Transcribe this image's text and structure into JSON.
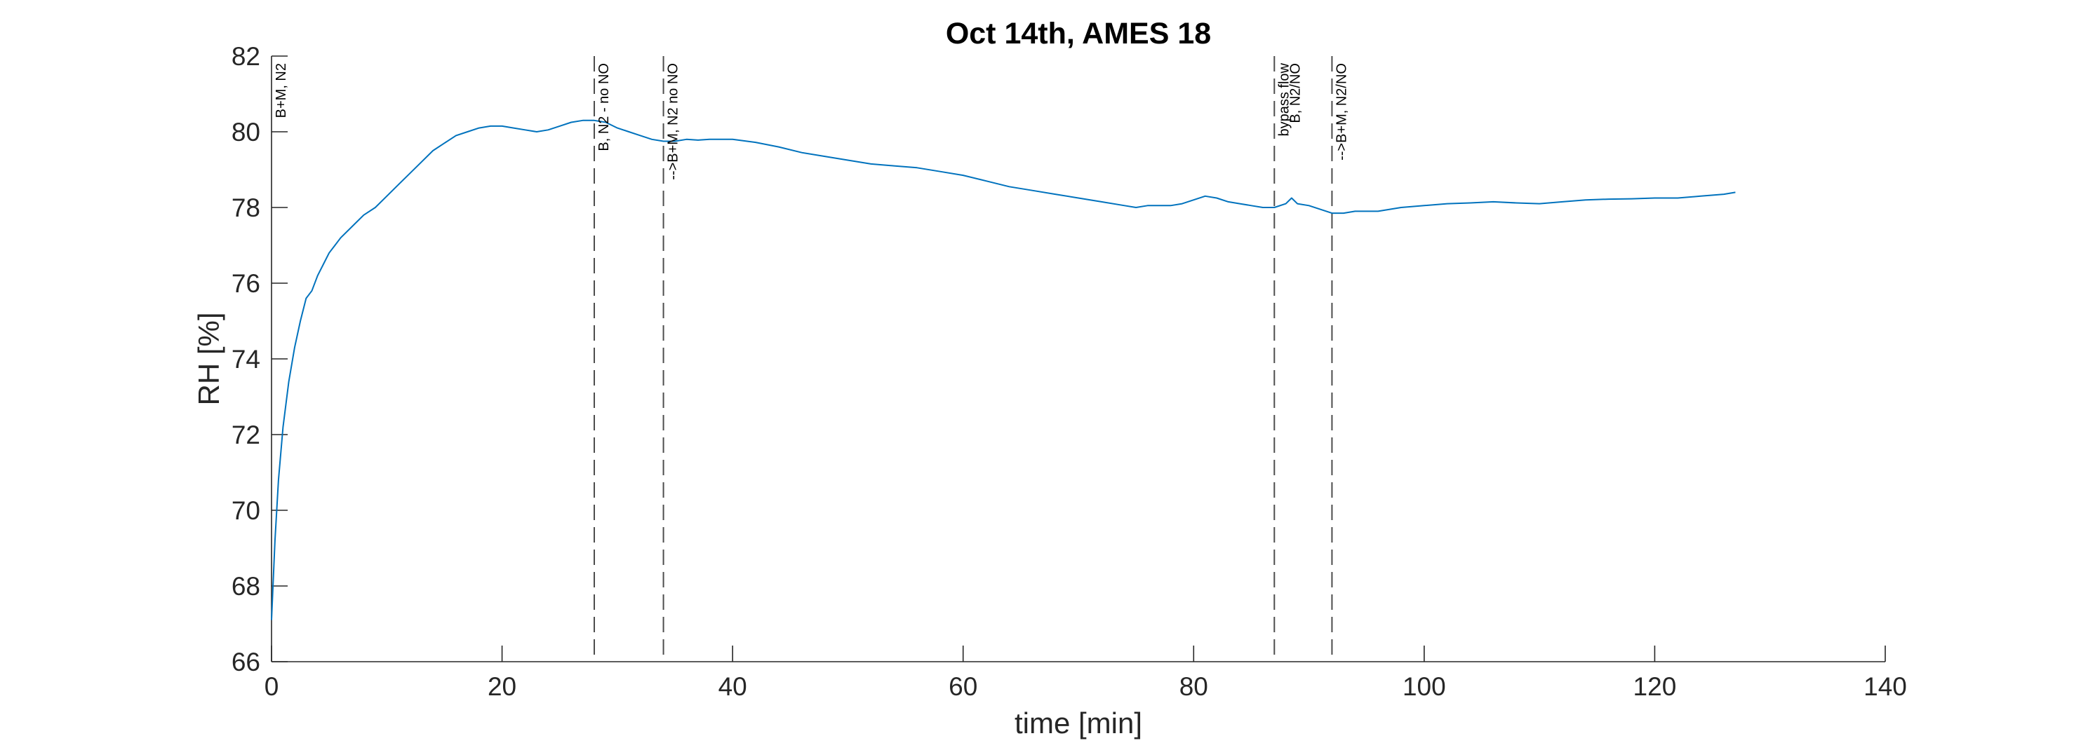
{
  "chart_data": {
    "type": "line",
    "title": "Oct 14th, AMES 18",
    "xlabel": "time [min]",
    "ylabel": "RH [%]",
    "xlim": [
      0,
      140
    ],
    "ylim": [
      66,
      82
    ],
    "xticks": [
      0,
      20,
      40,
      60,
      80,
      100,
      120,
      140
    ],
    "yticks": [
      66,
      68,
      70,
      72,
      74,
      76,
      78,
      80,
      82
    ],
    "xtick_labels": [
      "0",
      "20",
      "40",
      "60",
      "80",
      "100",
      "120",
      "140"
    ],
    "ytick_labels": [
      "66",
      "68",
      "70",
      "72",
      "74",
      "76",
      "78",
      "80",
      "82"
    ],
    "grid": false,
    "series": [
      {
        "name": "RH",
        "color": "#0072BD",
        "x": [
          0,
          0.3,
          0.6,
          1,
          1.5,
          2,
          2.5,
          3,
          3.5,
          4,
          4.5,
          5,
          5.5,
          6,
          7,
          8,
          9,
          10,
          11,
          12,
          13,
          14,
          15,
          16,
          17,
          18,
          19,
          20,
          21,
          22,
          23,
          24,
          25,
          26,
          27,
          28,
          29,
          30,
          31,
          32,
          33,
          34,
          35,
          36,
          37,
          38,
          39,
          40,
          42,
          44,
          46,
          48,
          50,
          52,
          54,
          56,
          58,
          60,
          62,
          64,
          66,
          68,
          70,
          72,
          74,
          75,
          76,
          77,
          78,
          79,
          80,
          81,
          82,
          83,
          84,
          85,
          86,
          87,
          88,
          88.5,
          89,
          90,
          91,
          92,
          93,
          94,
          95,
          96,
          98,
          100,
          102,
          104,
          106,
          108,
          110,
          112,
          114,
          116,
          118,
          120,
          122,
          124,
          126,
          127
        ],
        "y": [
          67.1,
          69.2,
          70.8,
          72.2,
          73.4,
          74.3,
          75.0,
          75.6,
          75.8,
          76.2,
          76.5,
          76.8,
          77.0,
          77.2,
          77.5,
          77.8,
          78.0,
          78.3,
          78.6,
          78.9,
          79.2,
          79.5,
          79.7,
          79.9,
          80.0,
          80.1,
          80.15,
          80.15,
          80.1,
          80.05,
          80.0,
          80.05,
          80.15,
          80.25,
          80.3,
          80.3,
          80.25,
          80.1,
          80.0,
          79.9,
          79.8,
          79.75,
          79.75,
          79.8,
          79.78,
          79.8,
          79.8,
          79.8,
          79.72,
          79.6,
          79.45,
          79.35,
          79.25,
          79.15,
          79.1,
          79.05,
          78.95,
          78.85,
          78.7,
          78.55,
          78.45,
          78.35,
          78.25,
          78.15,
          78.05,
          78.0,
          78.05,
          78.05,
          78.05,
          78.1,
          78.2,
          78.3,
          78.25,
          78.15,
          78.1,
          78.05,
          78.0,
          78.0,
          78.1,
          78.25,
          78.1,
          78.05,
          77.95,
          77.85,
          77.85,
          77.9,
          77.9,
          77.9,
          78.0,
          78.05,
          78.1,
          78.12,
          78.15,
          78.12,
          78.1,
          78.15,
          78.2,
          78.22,
          78.23,
          78.25,
          78.25,
          78.3,
          78.35,
          78.4
        ]
      }
    ],
    "annotations": [
      {
        "x": 0.0,
        "label": "B+M, N2",
        "line": false
      },
      {
        "x": 28.0,
        "label": "B, N2 - no NO",
        "line": true
      },
      {
        "x": 34.0,
        "label": "-->B+M, N2 no NO",
        "line": true
      },
      {
        "x": 87.0,
        "label": "bypass flow",
        "line": true
      },
      {
        "x": 88.0,
        "label": "B, N2/NO",
        "line": false
      },
      {
        "x": 92.0,
        "label": "-->B+M, N2/NO",
        "line": true
      }
    ]
  }
}
